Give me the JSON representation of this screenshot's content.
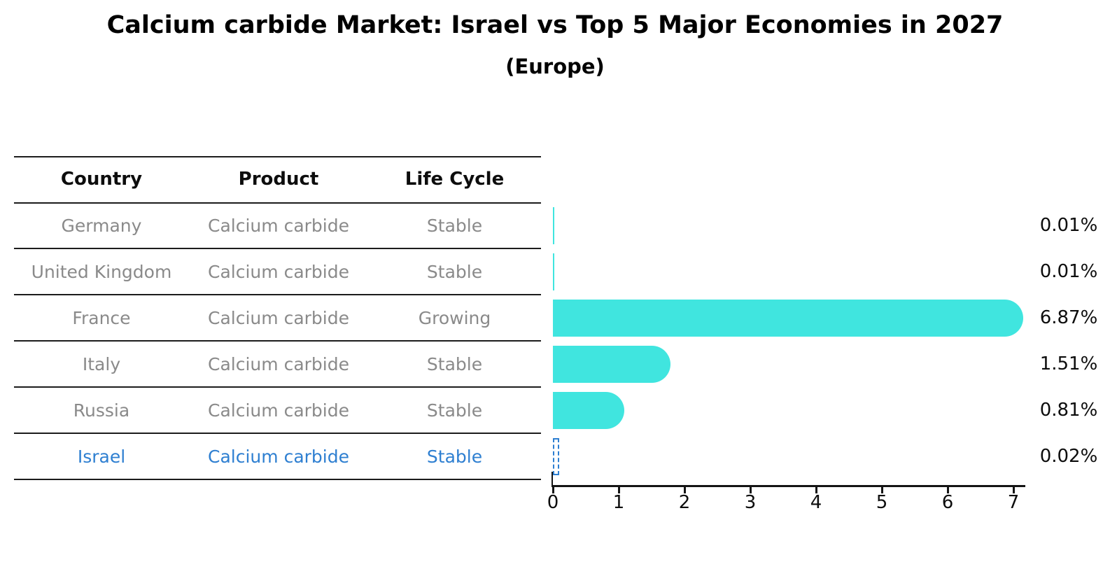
{
  "title": "Calcium carbide Market: Israel vs Top 5 Major Economies in 2027",
  "subtitle": "(Europe)",
  "table": {
    "headers": [
      "Country",
      "Product",
      "Life Cycle"
    ],
    "rows": [
      {
        "country": "Germany",
        "product": "Calcium carbide",
        "life_cycle": "Stable",
        "highlighted": false
      },
      {
        "country": "United Kingdom",
        "product": "Calcium carbide",
        "life_cycle": "Stable",
        "highlighted": false
      },
      {
        "country": "France",
        "product": "Calcium carbide",
        "life_cycle": "Growing",
        "highlighted": false
      },
      {
        "country": "Italy",
        "product": "Calcium carbide",
        "life_cycle": "Stable",
        "highlighted": false
      },
      {
        "country": "Russia",
        "product": "Calcium carbide",
        "life_cycle": "Stable",
        "highlighted": false
      },
      {
        "country": "Israel",
        "product": "Calcium carbide",
        "life_cycle": "Stable",
        "highlighted": true
      }
    ]
  },
  "chart_data": {
    "type": "bar",
    "orientation": "horizontal",
    "title": "Calcium carbide Market: Israel vs Top 5 Major Economies in 2027",
    "subtitle": "(Europe)",
    "categories": [
      "Germany",
      "United Kingdom",
      "France",
      "Italy",
      "Russia",
      "Israel"
    ],
    "values": [
      0.01,
      0.01,
      6.87,
      1.51,
      0.81,
      0.02
    ],
    "value_labels": [
      "0.01%",
      "0.01%",
      "6.87%",
      "1.51%",
      "0.81%",
      "0.02%"
    ],
    "xlabel": "",
    "ylabel": "",
    "xlim": [
      0,
      7
    ],
    "x_ticks": [
      0,
      1,
      2,
      3,
      4,
      5,
      6,
      7
    ],
    "grid": false,
    "legend": false,
    "bar_color": "#40e5df",
    "highlight_category": "Israel",
    "highlight_style": "dashed-outline",
    "highlight_color": "#2e7fd1"
  },
  "colors": {
    "background": "#ffffff",
    "title_text": "#000000",
    "table_text_muted": "#8a8a8a",
    "highlight_blue": "#2e7fd1",
    "bar_cyan": "#40e5df",
    "line_black": "#1c1c1c"
  }
}
